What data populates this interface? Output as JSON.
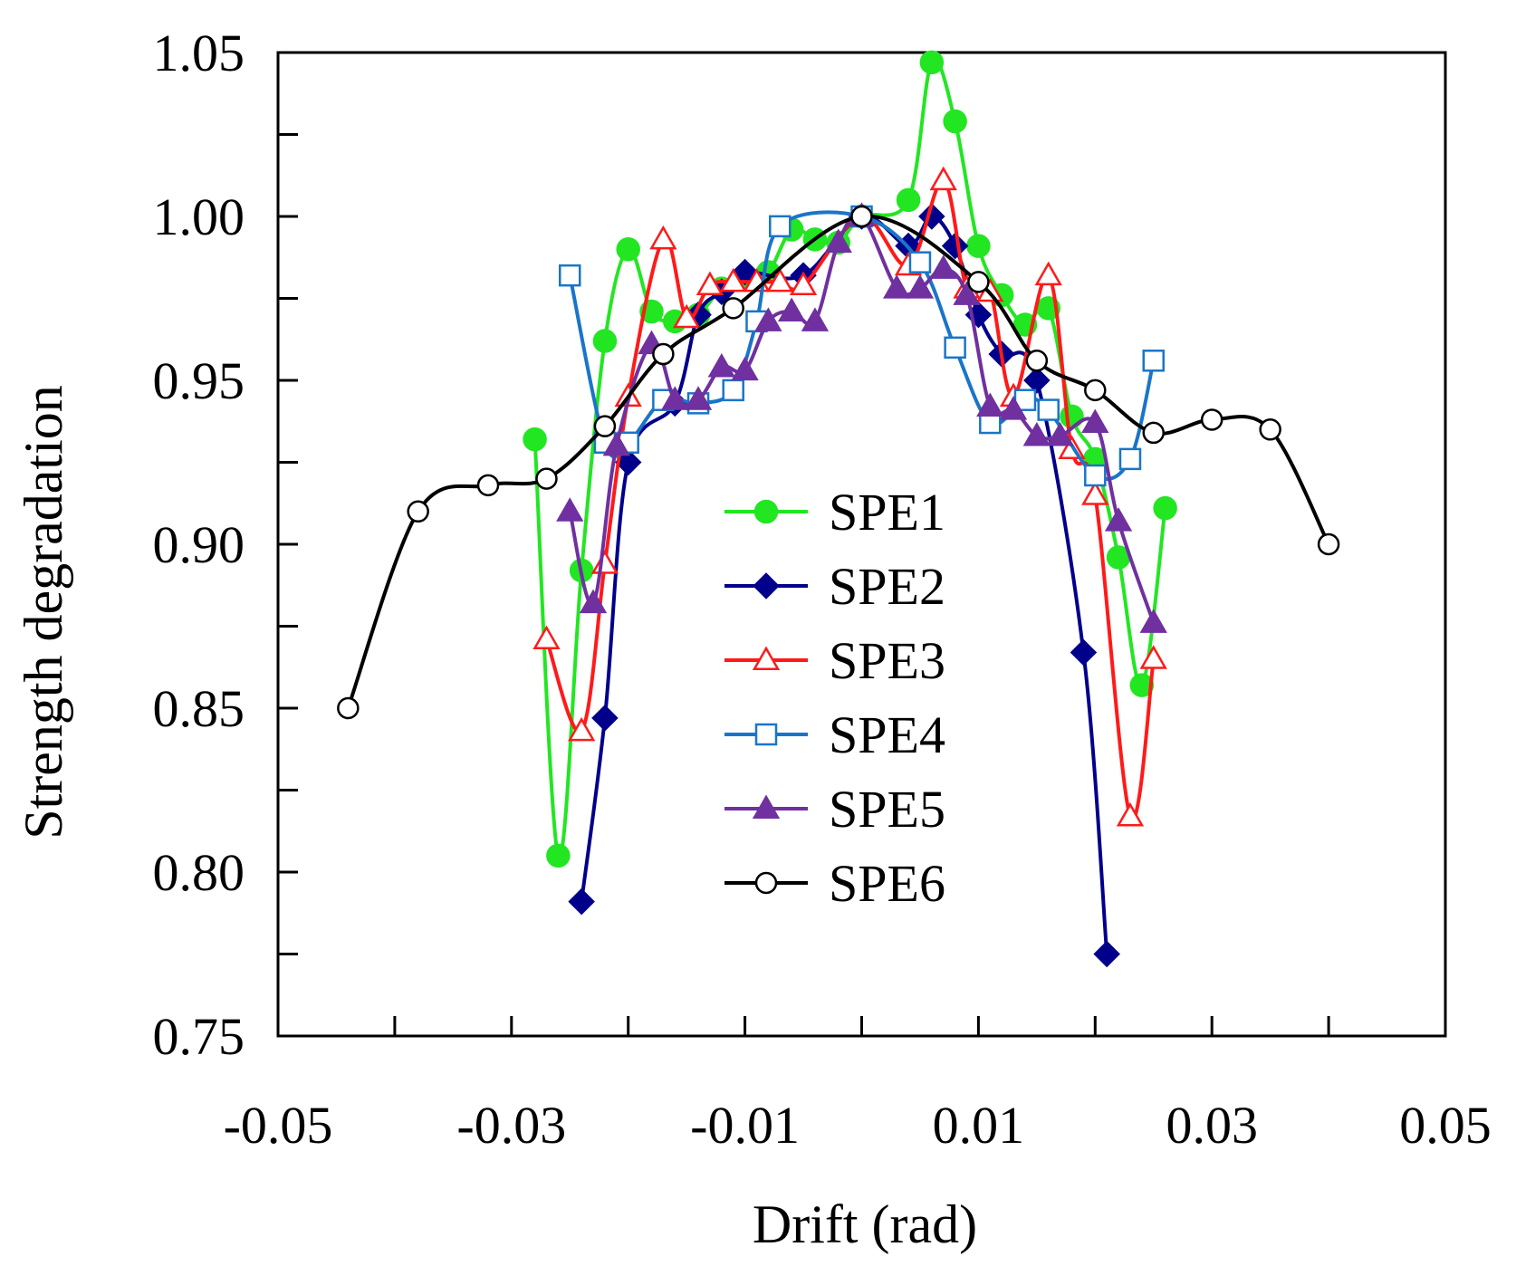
{
  "chart_data": {
    "type": "line",
    "title": "",
    "xlabel": "Drift (rad)",
    "ylabel": "Strength degradation",
    "xlim": [
      -0.05,
      0.05
    ],
    "ylim": [
      0.75,
      1.05
    ],
    "xticks": [
      -0.05,
      -0.04,
      -0.03,
      -0.02,
      -0.01,
      0.0,
      0.01,
      0.02,
      0.03,
      0.04,
      0.05
    ],
    "xtick_labels": [
      "-0.05",
      "-0.03",
      "-0.01",
      "0.01",
      "0.03",
      "0.05"
    ],
    "xtick_label_values": [
      -0.05,
      -0.03,
      -0.01,
      0.01,
      0.03,
      0.05
    ],
    "yticks": [
      0.75,
      0.775,
      0.8,
      0.825,
      0.85,
      0.875,
      0.9,
      0.925,
      0.95,
      0.975,
      1.0,
      1.025,
      1.05
    ],
    "ytick_labels": [
      "0.75",
      "0.80",
      "0.85",
      "0.90",
      "0.95",
      "1.00",
      "1.05"
    ],
    "ytick_label_values": [
      0.75,
      0.8,
      0.85,
      0.9,
      0.95,
      1.0,
      1.05
    ],
    "grid": false,
    "legend_position": "center",
    "series": [
      {
        "name": "SPE1",
        "color": "#22e622",
        "marker": "circle",
        "filled": true,
        "x": [
          -0.028,
          -0.026,
          -0.024,
          -0.022,
          -0.02,
          -0.018,
          -0.016,
          -0.014,
          -0.012,
          -0.01,
          -0.008,
          -0.006,
          -0.004,
          -0.002,
          0.0,
          0.004,
          0.006,
          0.008,
          0.01,
          0.012,
          0.014,
          0.016,
          0.018,
          0.02,
          0.022,
          0.024,
          0.026
        ],
        "y": [
          0.932,
          0.805,
          0.892,
          0.962,
          0.99,
          0.971,
          0.968,
          0.97,
          0.978,
          0.981,
          0.983,
          0.996,
          0.993,
          0.992,
          1.0,
          1.005,
          1.047,
          1.029,
          0.991,
          0.976,
          0.967,
          0.972,
          0.939,
          0.926,
          0.896,
          0.857,
          0.911
        ]
      },
      {
        "name": "SPE2",
        "color": "#00008b",
        "marker": "diamond",
        "filled": true,
        "x": [
          -0.024,
          -0.022,
          -0.02,
          -0.016,
          -0.014,
          -0.012,
          -0.01,
          -0.005,
          0.0,
          0.004,
          0.006,
          0.008,
          0.01,
          0.012,
          0.015,
          0.019,
          0.021
        ],
        "y": [
          0.791,
          0.847,
          0.925,
          0.943,
          0.97,
          0.977,
          0.983,
          0.982,
          1.0,
          0.991,
          1.0,
          0.991,
          0.97,
          0.958,
          0.95,
          0.867,
          0.775
        ]
      },
      {
        "name": "SPE3",
        "color": "#ff1a1a",
        "marker": "triangle",
        "filled": false,
        "x": [
          -0.027,
          -0.024,
          -0.022,
          -0.02,
          -0.017,
          -0.015,
          -0.013,
          -0.011,
          -0.009,
          -0.007,
          -0.005,
          0.0,
          0.004,
          0.007,
          0.009,
          0.011,
          0.013,
          0.016,
          0.018,
          0.02,
          0.023,
          0.025
        ],
        "y": [
          0.871,
          0.843,
          0.894,
          0.945,
          0.993,
          0.969,
          0.979,
          0.98,
          0.98,
          0.98,
          0.979,
          1.0,
          0.985,
          1.011,
          0.978,
          0.977,
          0.945,
          0.982,
          0.929,
          0.915,
          0.817,
          0.865
        ]
      },
      {
        "name": "SPE4",
        "color": "#1a75c8",
        "marker": "square",
        "filled": false,
        "x": [
          -0.025,
          -0.022,
          -0.02,
          -0.017,
          -0.014,
          -0.011,
          -0.009,
          -0.007,
          0.0,
          0.005,
          0.008,
          0.011,
          0.014,
          0.016,
          0.02,
          0.023,
          0.025
        ],
        "y": [
          0.982,
          0.931,
          0.931,
          0.944,
          0.943,
          0.947,
          0.968,
          0.997,
          1.0,
          0.986,
          0.96,
          0.937,
          0.944,
          0.941,
          0.921,
          0.926,
          0.956
        ]
      },
      {
        "name": "SPE5",
        "color": "#7030a0",
        "marker": "triangle",
        "filled": true,
        "x": [
          -0.025,
          -0.023,
          -0.021,
          -0.018,
          -0.016,
          -0.014,
          -0.012,
          -0.01,
          -0.008,
          -0.006,
          -0.004,
          -0.002,
          0.0,
          0.003,
          0.005,
          0.007,
          0.009,
          0.011,
          0.013,
          0.015,
          0.017,
          0.02,
          0.022,
          0.025
        ],
        "y": [
          0.91,
          0.882,
          0.93,
          0.961,
          0.944,
          0.944,
          0.954,
          0.953,
          0.968,
          0.971,
          0.968,
          0.992,
          1.0,
          0.978,
          0.978,
          0.984,
          0.976,
          0.942,
          0.941,
          0.933,
          0.933,
          0.937,
          0.907,
          0.876
        ]
      },
      {
        "name": "SPE6",
        "color": "#000000",
        "marker": "circle",
        "filled": false,
        "x": [
          -0.044,
          -0.038,
          -0.032,
          -0.027,
          -0.022,
          -0.017,
          -0.011,
          0.0,
          0.01,
          0.015,
          0.02,
          0.025,
          0.03,
          0.035,
          0.04
        ],
        "y": [
          0.85,
          0.91,
          0.918,
          0.92,
          0.936,
          0.958,
          0.972,
          1.0,
          0.98,
          0.956,
          0.947,
          0.934,
          0.938,
          0.935,
          0.9
        ]
      }
    ]
  }
}
